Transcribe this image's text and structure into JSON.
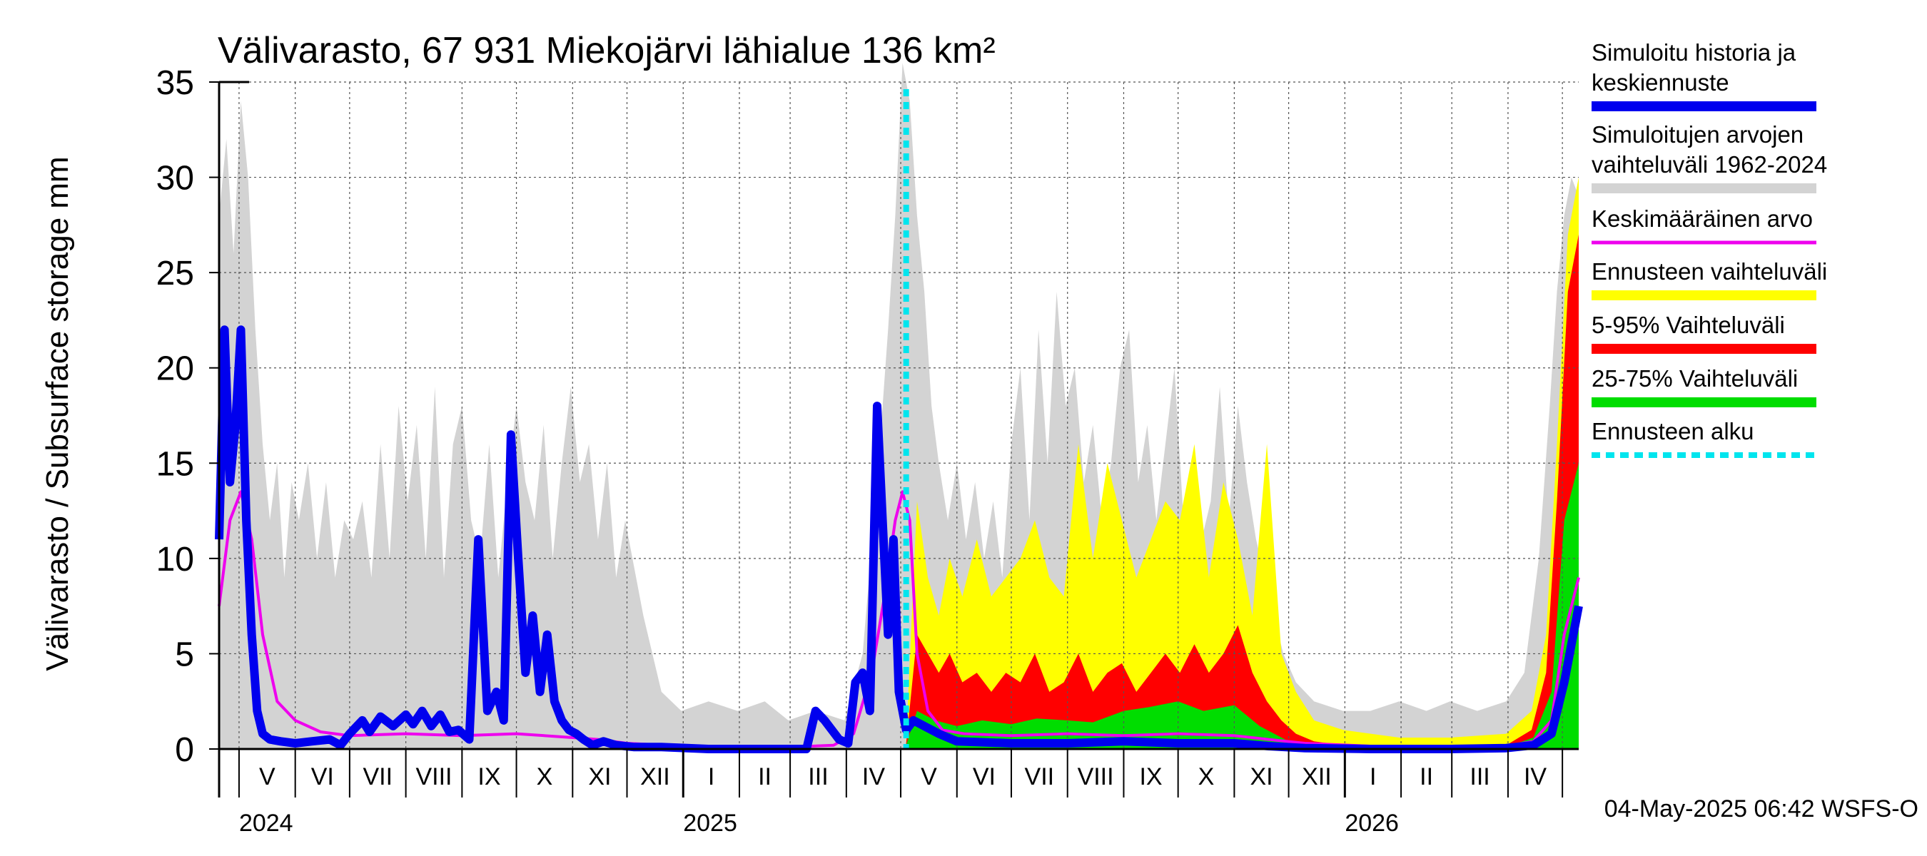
{
  "chart_data": {
    "type": "area",
    "title": "Välivarasto, 67 931 Miekojärvi lähialue 136 km²",
    "ylabel": "Välivarasto / Subsurface storage  mm",
    "ylim": [
      0,
      35
    ],
    "yticks": [
      0,
      5,
      10,
      15,
      20,
      25,
      30,
      35
    ],
    "xlim": [
      "2024-04-20",
      "2026-05-10"
    ],
    "x_month_labels": [
      {
        "label": "V",
        "month": "2024-05"
      },
      {
        "label": "VI",
        "month": "2024-06"
      },
      {
        "label": "VII",
        "month": "2024-07"
      },
      {
        "label": "VIII",
        "month": "2024-08"
      },
      {
        "label": "IX",
        "month": "2024-09"
      },
      {
        "label": "X",
        "month": "2024-10"
      },
      {
        "label": "XI",
        "month": "2024-11"
      },
      {
        "label": "XII",
        "month": "2024-12"
      },
      {
        "label": "I",
        "month": "2025-01"
      },
      {
        "label": "II",
        "month": "2025-02"
      },
      {
        "label": "III",
        "month": "2025-03"
      },
      {
        "label": "IV",
        "month": "2025-04"
      },
      {
        "label": "V",
        "month": "2025-05"
      },
      {
        "label": "VI",
        "month": "2025-06"
      },
      {
        "label": "VII",
        "month": "2025-07"
      },
      {
        "label": "VIII",
        "month": "2025-08"
      },
      {
        "label": "IX",
        "month": "2025-09"
      },
      {
        "label": "X",
        "month": "2025-10"
      },
      {
        "label": "XI",
        "month": "2025-11"
      },
      {
        "label": "XII",
        "month": "2025-12"
      },
      {
        "label": "I",
        "month": "2026-01"
      },
      {
        "label": "II",
        "month": "2026-02"
      },
      {
        "label": "III",
        "month": "2026-03"
      },
      {
        "label": "IV",
        "month": "2026-04"
      }
    ],
    "x_year_labels": [
      {
        "label": "2024",
        "date": "2024-05-01"
      },
      {
        "label": "2025",
        "date": "2025-01-01"
      },
      {
        "label": "2026",
        "date": "2026-01-01"
      }
    ],
    "forecast_start": "2025-05-04",
    "grid": true,
    "legend_placement": "right",
    "legend": [
      {
        "label": "Simuloitu historia ja keskiennuste",
        "color": "#0000ee",
        "style": "thick-line"
      },
      {
        "label": "Simuloitujen arvojen vaihteluväli 1962-2024",
        "color": "#d3d3d3",
        "style": "band"
      },
      {
        "label": "Keskimääräinen arvo",
        "color": "#ee00ee",
        "style": "line"
      },
      {
        "label": "Ennusteen vaihteluväli",
        "color": "#ffff00",
        "style": "band"
      },
      {
        "label": "5-95% Vaihteluväli",
        "color": "#ff0000",
        "style": "band"
      },
      {
        "label": "25-75% Vaihteluväli",
        "color": "#00dd00",
        "style": "band"
      },
      {
        "label": "Ennusteen alku",
        "color": "#00e5ee",
        "style": "dashed-line"
      }
    ],
    "series": [
      {
        "name": "Simuloitujen arvojen vaihteluväli 1962-2024",
        "kind": "band-max",
        "x": [
          "2024-04-20",
          "2024-04-24",
          "2024-04-28",
          "2024-05-02",
          "2024-05-06",
          "2024-05-10",
          "2024-05-14",
          "2024-05-18",
          "2024-05-22",
          "2024-05-26",
          "2024-05-30",
          "2024-06-03",
          "2024-06-08",
          "2024-06-13",
          "2024-06-18",
          "2024-06-23",
          "2024-06-28",
          "2024-07-03",
          "2024-07-08",
          "2024-07-13",
          "2024-07-18",
          "2024-07-23",
          "2024-07-28",
          "2024-08-02",
          "2024-08-07",
          "2024-08-12",
          "2024-08-17",
          "2024-08-22",
          "2024-08-27",
          "2024-09-01",
          "2024-09-06",
          "2024-09-11",
          "2024-09-16",
          "2024-09-21",
          "2024-09-26",
          "2024-10-01",
          "2024-10-06",
          "2024-10-11",
          "2024-10-16",
          "2024-10-21",
          "2024-10-26",
          "2024-10-31",
          "2024-11-05",
          "2024-11-10",
          "2024-11-15",
          "2024-11-20",
          "2024-11-25",
          "2024-11-30",
          "2024-12-10",
          "2024-12-20",
          "2024-12-31",
          "2025-01-15",
          "2025-01-31",
          "2025-02-15",
          "2025-02-28",
          "2025-03-15",
          "2025-03-31",
          "2025-04-10",
          "2025-04-18",
          "2025-04-24",
          "2025-04-28",
          "2025-05-02",
          "2025-05-06",
          "2025-05-10",
          "2025-05-14",
          "2025-05-18",
          "2025-05-22",
          "2025-05-27",
          "2025-06-01",
          "2025-06-06",
          "2025-06-11",
          "2025-06-16",
          "2025-06-21",
          "2025-06-26",
          "2025-07-01",
          "2025-07-06",
          "2025-07-11",
          "2025-07-16",
          "2025-07-21",
          "2025-07-26",
          "2025-07-31",
          "2025-08-05",
          "2025-08-10",
          "2025-08-15",
          "2025-08-20",
          "2025-08-25",
          "2025-08-30",
          "2025-09-04",
          "2025-09-09",
          "2025-09-14",
          "2025-09-19",
          "2025-09-24",
          "2025-09-29",
          "2025-10-04",
          "2025-10-09",
          "2025-10-14",
          "2025-10-19",
          "2025-10-24",
          "2025-10-29",
          "2025-11-03",
          "2025-11-08",
          "2025-11-13",
          "2025-11-18",
          "2025-11-23",
          "2025-11-28",
          "2025-12-05",
          "2025-12-15",
          "2025-12-31",
          "2026-01-15",
          "2026-01-31",
          "2026-02-15",
          "2026-02-28",
          "2026-03-15",
          "2026-03-31",
          "2026-04-10",
          "2026-04-18",
          "2026-04-24",
          "2026-04-28",
          "2026-05-02",
          "2026-05-06",
          "2026-05-10"
        ],
        "values": [
          28,
          32,
          26,
          34,
          30,
          22,
          16,
          12,
          15,
          9,
          14,
          12,
          15,
          10,
          14,
          9,
          12,
          11,
          13,
          9,
          16,
          10,
          18,
          13,
          17,
          10,
          19,
          9,
          16,
          18,
          12,
          10,
          16,
          9,
          14,
          18,
          14,
          12,
          17,
          10,
          15,
          19,
          14,
          16,
          11,
          15,
          9,
          12,
          7,
          3,
          2,
          2.5,
          2,
          2.5,
          1.5,
          2,
          1.5,
          5,
          14,
          22,
          28,
          36,
          34,
          28,
          24,
          18,
          15,
          12,
          15,
          11,
          14,
          10,
          13,
          9,
          16,
          20,
          12,
          22,
          15,
          24,
          18,
          20,
          14,
          17,
          12,
          15,
          20,
          22,
          14,
          17,
          12,
          16,
          20,
          12,
          14,
          11,
          13,
          19,
          12,
          18,
          14,
          11,
          9,
          7,
          5,
          3.5,
          2.5,
          2,
          2,
          2.5,
          2,
          2.5,
          2,
          2.5,
          4,
          10,
          18,
          24,
          28,
          30,
          29
        ]
      },
      {
        "name": "Ennusteen vaihteluväli",
        "kind": "band-max",
        "x": [
          "2025-05-04",
          "2025-05-10",
          "2025-05-16",
          "2025-05-22",
          "2025-05-28",
          "2025-06-04",
          "2025-06-12",
          "2025-06-20",
          "2025-06-28",
          "2025-07-06",
          "2025-07-14",
          "2025-07-22",
          "2025-07-30",
          "2025-08-07",
          "2025-08-15",
          "2025-08-23",
          "2025-08-31",
          "2025-09-08",
          "2025-09-16",
          "2025-09-24",
          "2025-10-02",
          "2025-10-10",
          "2025-10-18",
          "2025-10-26",
          "2025-11-03",
          "2025-11-11",
          "2025-11-19",
          "2025-11-27",
          "2025-12-05",
          "2025-12-15",
          "2025-12-31",
          "2026-01-31",
          "2026-02-28",
          "2026-03-31",
          "2026-04-14",
          "2026-04-22",
          "2026-04-28",
          "2026-05-04",
          "2026-05-10"
        ],
        "values": [
          0.5,
          13,
          9,
          7,
          10,
          8,
          11,
          8,
          9,
          10,
          12,
          9,
          8,
          16,
          10,
          15,
          12,
          9,
          11,
          13,
          12,
          16,
          9,
          14,
          11,
          7,
          16,
          5,
          3,
          1.5,
          1,
          0.6,
          0.6,
          0.8,
          2,
          6,
          16,
          27,
          30
        ]
      },
      {
        "name": "5-95% Vaihteluväli",
        "kind": "band-max",
        "x": [
          "2025-05-04",
          "2025-05-10",
          "2025-05-16",
          "2025-05-22",
          "2025-05-28",
          "2025-06-04",
          "2025-06-12",
          "2025-06-20",
          "2025-06-28",
          "2025-07-06",
          "2025-07-14",
          "2025-07-22",
          "2025-07-30",
          "2025-08-07",
          "2025-08-15",
          "2025-08-23",
          "2025-08-31",
          "2025-09-08",
          "2025-09-16",
          "2025-09-24",
          "2025-10-02",
          "2025-10-10",
          "2025-10-18",
          "2025-10-26",
          "2025-11-03",
          "2025-11-11",
          "2025-11-19",
          "2025-11-27",
          "2025-12-05",
          "2025-12-15",
          "2025-12-31",
          "2026-01-31",
          "2026-02-28",
          "2026-03-31",
          "2026-04-14",
          "2026-04-22",
          "2026-04-28",
          "2026-05-04",
          "2026-05-10"
        ],
        "values": [
          0.3,
          6,
          5,
          4,
          5,
          3.5,
          4,
          3,
          4,
          3.5,
          5,
          3,
          3.5,
          5,
          3,
          4,
          4.5,
          3,
          4,
          5,
          4,
          5.5,
          4,
          5,
          6.5,
          4,
          2.5,
          1.5,
          0.8,
          0.4,
          0.2,
          0.1,
          0.1,
          0.2,
          1,
          4,
          13,
          24,
          27
        ]
      },
      {
        "name": "25-75% Vaihteluväli",
        "kind": "band-max",
        "x": [
          "2025-05-04",
          "2025-05-10",
          "2025-05-20",
          "2025-06-01",
          "2025-06-15",
          "2025-07-01",
          "2025-07-15",
          "2025-08-01",
          "2025-08-15",
          "2025-09-01",
          "2025-09-15",
          "2025-10-01",
          "2025-10-15",
          "2025-11-01",
          "2025-11-15",
          "2025-12-01",
          "2025-12-31",
          "2026-02-28",
          "2026-03-31",
          "2026-04-15",
          "2026-04-25",
          "2026-05-02",
          "2026-05-10"
        ],
        "values": [
          0.2,
          2,
          1.5,
          1.2,
          1.5,
          1.3,
          1.6,
          1.5,
          1.4,
          2,
          2.2,
          2.5,
          2,
          2.3,
          1.2,
          0.4,
          0.1,
          0.05,
          0.1,
          0.6,
          3,
          12,
          15
        ]
      },
      {
        "name": "Keskimääräinen arvo",
        "kind": "line",
        "x": [
          "2024-04-20",
          "2024-04-26",
          "2024-05-02",
          "2024-05-08",
          "2024-05-14",
          "2024-05-22",
          "2024-06-01",
          "2024-06-15",
          "2024-07-01",
          "2024-08-01",
          "2024-09-01",
          "2024-10-01",
          "2024-11-01",
          "2024-11-15",
          "2024-12-01",
          "2024-12-31",
          "2025-02-01",
          "2025-03-01",
          "2025-03-25",
          "2025-04-05",
          "2025-04-15",
          "2025-04-22",
          "2025-04-28",
          "2025-05-02",
          "2025-05-06",
          "2025-05-10",
          "2025-05-16",
          "2025-05-24",
          "2025-06-05",
          "2025-07-01",
          "2025-08-01",
          "2025-09-01",
          "2025-10-01",
          "2025-11-01",
          "2025-11-20",
          "2025-12-10",
          "2026-01-15",
          "2026-02-28",
          "2026-03-31",
          "2026-04-15",
          "2026-04-25",
          "2026-05-02",
          "2026-05-10"
        ],
        "values": [
          7.5,
          12,
          13.5,
          11,
          6,
          2.5,
          1.5,
          0.9,
          0.7,
          0.8,
          0.7,
          0.8,
          0.6,
          0.5,
          0.3,
          0.15,
          0.1,
          0.1,
          0.2,
          0.8,
          4,
          8,
          12,
          13.5,
          12,
          5,
          2,
          1,
          0.8,
          0.7,
          0.8,
          0.7,
          0.8,
          0.7,
          0.5,
          0.3,
          0.15,
          0.1,
          0.15,
          0.4,
          1.5,
          6,
          9
        ]
      },
      {
        "name": "Simuloitu historia ja keskiennuste",
        "kind": "thick-line",
        "x": [
          "2024-04-20",
          "2024-04-23",
          "2024-04-26",
          "2024-04-29",
          "2024-05-02",
          "2024-05-05",
          "2024-05-08",
          "2024-05-11",
          "2024-05-14",
          "2024-05-18",
          "2024-05-24",
          "2024-06-01",
          "2024-06-10",
          "2024-06-20",
          "2024-06-26",
          "2024-07-01",
          "2024-07-08",
          "2024-07-12",
          "2024-07-18",
          "2024-07-25",
          "2024-08-01",
          "2024-08-05",
          "2024-08-10",
          "2024-08-15",
          "2024-08-20",
          "2024-08-25",
          "2024-08-30",
          "2024-09-05",
          "2024-09-10",
          "2024-09-15",
          "2024-09-20",
          "2024-09-24",
          "2024-09-28",
          "2024-10-02",
          "2024-10-06",
          "2024-10-10",
          "2024-10-14",
          "2024-10-18",
          "2024-10-22",
          "2024-10-26",
          "2024-10-30",
          "2024-11-03",
          "2024-11-07",
          "2024-11-12",
          "2024-11-18",
          "2024-11-25",
          "2024-12-05",
          "2024-12-20",
          "2025-01-15",
          "2025-02-15",
          "2025-03-10",
          "2025-03-15",
          "2025-03-20",
          "2025-03-28",
          "2025-04-02",
          "2025-04-06",
          "2025-04-10",
          "2025-04-14",
          "2025-04-18",
          "2025-04-21",
          "2025-04-24",
          "2025-04-27",
          "2025-04-30",
          "2025-05-02",
          "2025-05-04",
          "2025-05-08",
          "2025-05-14",
          "2025-05-22",
          "2025-06-01",
          "2025-07-01",
          "2025-08-01",
          "2025-09-01",
          "2025-10-01",
          "2025-11-01",
          "2025-11-20",
          "2025-12-10",
          "2026-01-15",
          "2026-02-28",
          "2026-03-31",
          "2026-04-15",
          "2026-04-25",
          "2026-05-02",
          "2026-05-10"
        ],
        "values": [
          11,
          22,
          14,
          17,
          22,
          12,
          6,
          2,
          0.8,
          0.5,
          0.4,
          0.3,
          0.4,
          0.5,
          0.2,
          0.8,
          1.5,
          0.9,
          1.7,
          1.2,
          1.8,
          1.3,
          2.0,
          1.2,
          1.8,
          0.9,
          1.0,
          0.5,
          11,
          2,
          3,
          1.5,
          16.5,
          10,
          4,
          7,
          3,
          6,
          2.5,
          1.5,
          1,
          0.8,
          0.5,
          0.2,
          0.4,
          0.2,
          0.1,
          0.1,
          0,
          0,
          0,
          2,
          1.5,
          0.5,
          0.3,
          3.5,
          4,
          2,
          18,
          12,
          6,
          11,
          3,
          2,
          1,
          1.5,
          1.2,
          0.8,
          0.4,
          0.3,
          0.3,
          0.4,
          0.3,
          0.3,
          0.15,
          0.05,
          0,
          0,
          0.05,
          0.2,
          0.8,
          3.5,
          7.5
        ]
      }
    ],
    "footer": "04-May-2025 06:42 WSFS-O"
  }
}
